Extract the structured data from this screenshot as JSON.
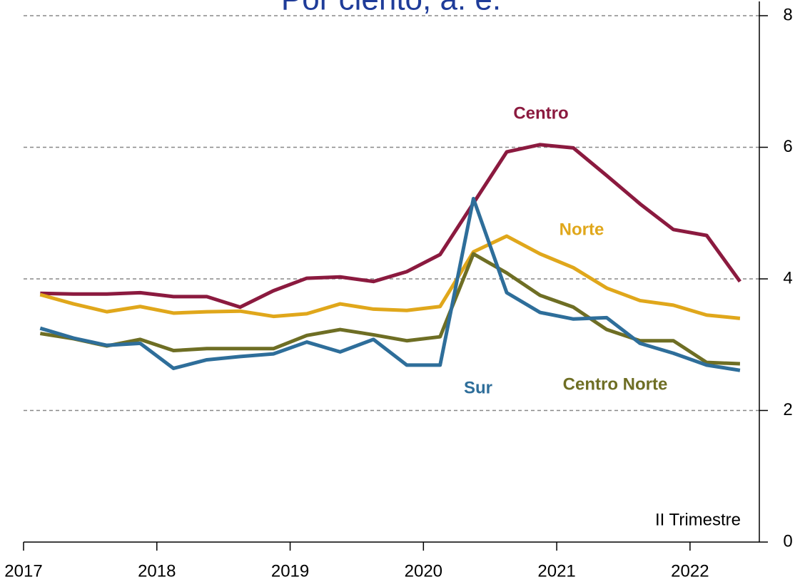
{
  "chart_data": {
    "type": "line",
    "title": "Por ciento, a. e.",
    "annotation": "II Trimestre",
    "x": [
      2017.125,
      2017.375,
      2017.625,
      2017.875,
      2018.125,
      2018.375,
      2018.625,
      2018.875,
      2019.125,
      2019.375,
      2019.625,
      2019.875,
      2020.125,
      2020.375,
      2020.625,
      2020.875,
      2021.125,
      2021.375,
      2021.625,
      2021.875,
      2022.125,
      2022.375
    ],
    "xlim": [
      2017,
      2022.52
    ],
    "xticks": [
      2017,
      2018,
      2019,
      2020,
      2021,
      2022
    ],
    "ylim": [
      0,
      8
    ],
    "yticks": [
      0,
      2,
      4,
      6,
      8
    ],
    "grid": true,
    "series": [
      {
        "name": "Centro",
        "color": "#8b1a3f",
        "values": [
          3.78,
          3.77,
          3.77,
          3.79,
          3.73,
          3.73,
          3.57,
          3.82,
          4.01,
          4.03,
          3.96,
          4.11,
          4.37,
          5.15,
          5.93,
          6.04,
          5.99,
          5.57,
          5.14,
          4.75,
          4.66,
          3.96
        ]
      },
      {
        "name": "Norte",
        "color": "#e0a71b",
        "values": [
          3.76,
          3.62,
          3.5,
          3.58,
          3.48,
          3.5,
          3.51,
          3.43,
          3.47,
          3.62,
          3.54,
          3.52,
          3.58,
          4.41,
          4.65,
          4.38,
          4.17,
          3.86,
          3.67,
          3.6,
          3.45,
          3.4
        ]
      },
      {
        "name": "Centro Norte",
        "color": "#6e6e24",
        "values": [
          3.17,
          3.09,
          2.98,
          3.08,
          2.91,
          2.94,
          2.94,
          2.94,
          3.14,
          3.23,
          3.15,
          3.06,
          3.12,
          4.38,
          4.09,
          3.75,
          3.57,
          3.23,
          3.06,
          3.06,
          2.73,
          2.71
        ]
      },
      {
        "name": "Sur",
        "color": "#2e6e9a",
        "values": [
          3.25,
          3.1,
          2.99,
          3.02,
          2.64,
          2.77,
          2.82,
          2.86,
          3.04,
          2.89,
          3.08,
          2.69,
          2.69,
          5.22,
          3.79,
          3.49,
          3.39,
          3.41,
          3.02,
          2.87,
          2.69,
          2.61
        ]
      }
    ]
  }
}
